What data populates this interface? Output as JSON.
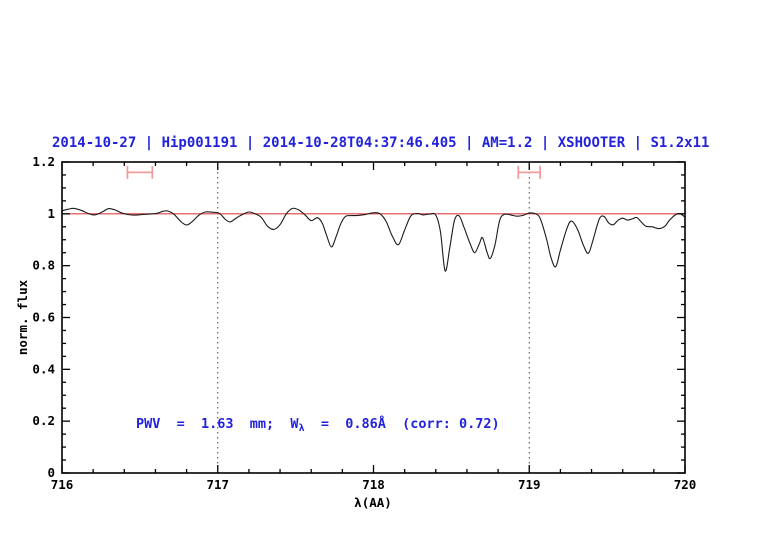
{
  "title": {
    "text": "2014-10-27 | Hip001191 | 2014-10-28T04:37:46.405 | AM=1.2 | XSHOOTER | S1.2x11",
    "color": "#2222dd"
  },
  "annotation": {
    "prefix": "PWV  =  1.63  mm;  W",
    "subscript": "λ",
    "suffix": "  =  0.86Å  (corr: 0.72)",
    "color": "#2222dd"
  },
  "chart_data": {
    "type": "line",
    "title": "2014-10-27 | Hip001191 | 2014-10-28T04:37:46.405 | AM=1.2 | XSHOOTER | S1.2x11",
    "xlabel": "λ(AA)",
    "ylabel": "norm. flux",
    "xlim": [
      716,
      720
    ],
    "ylim": [
      0,
      1.2
    ],
    "grid": false,
    "x_major_ticks": [
      716,
      717,
      718,
      719,
      720
    ],
    "x_tick_labels": [
      "716",
      "717",
      "718",
      "719",
      "720"
    ],
    "x_minor_step": 0.2,
    "y_major_ticks": [
      0,
      0.2,
      0.4,
      0.6,
      0.8,
      1,
      1.2
    ],
    "y_tick_labels": [
      "0",
      "0.2",
      "0.4",
      "0.6",
      "0.8",
      "1",
      "1.2"
    ],
    "y_minor_step": 0.05,
    "vlines": [
      {
        "x": 717,
        "style": "dotted",
        "color": "#444444"
      },
      {
        "x": 719,
        "style": "dotted",
        "color": "#444444"
      }
    ],
    "range_markers": [
      {
        "x_center": 716.5,
        "half_width": 0.08,
        "y": 1.16,
        "cap_half_height": 0.025,
        "color": "#f29b9b"
      },
      {
        "x_center": 719.0,
        "half_width": 0.07,
        "y": 1.16,
        "cap_half_height": 0.025,
        "color": "#f29b9b"
      }
    ],
    "series": [
      {
        "name": "continuum",
        "color": "#e04040",
        "width": 1.2,
        "smooth": false,
        "points": [
          [
            716.0,
            1.0
          ],
          [
            720.0,
            1.0
          ]
        ]
      },
      {
        "name": "spectrum",
        "color": "#1b1b1b",
        "width": 1.1,
        "smooth": true,
        "points": [
          [
            716.0,
            1.012
          ],
          [
            716.04,
            1.018
          ],
          [
            716.08,
            1.021
          ],
          [
            716.13,
            1.012
          ],
          [
            716.17,
            1.001
          ],
          [
            716.21,
            0.996
          ],
          [
            716.26,
            1.008
          ],
          [
            716.3,
            1.02
          ],
          [
            716.34,
            1.015
          ],
          [
            716.38,
            1.004
          ],
          [
            716.42,
            0.998
          ],
          [
            716.46,
            0.995
          ],
          [
            716.51,
            0.997
          ],
          [
            716.56,
            0.999
          ],
          [
            716.61,
            1.002
          ],
          [
            716.65,
            1.01
          ],
          [
            716.68,
            1.011
          ],
          [
            716.72,
            0.998
          ],
          [
            716.76,
            0.972
          ],
          [
            716.8,
            0.957
          ],
          [
            716.84,
            0.972
          ],
          [
            716.88,
            0.995
          ],
          [
            716.92,
            1.007
          ],
          [
            716.97,
            1.006
          ],
          [
            717.01,
            1.002
          ],
          [
            717.05,
            0.978
          ],
          [
            717.08,
            0.969
          ],
          [
            717.12,
            0.984
          ],
          [
            717.16,
            0.998
          ],
          [
            717.2,
            1.007
          ],
          [
            717.24,
            1.0
          ],
          [
            717.28,
            0.986
          ],
          [
            717.32,
            0.952
          ],
          [
            717.36,
            0.94
          ],
          [
            717.4,
            0.958
          ],
          [
            717.44,
            1.0
          ],
          [
            717.48,
            1.021
          ],
          [
            717.52,
            1.015
          ],
          [
            717.56,
            0.996
          ],
          [
            717.6,
            0.974
          ],
          [
            717.64,
            0.985
          ],
          [
            717.67,
            0.965
          ],
          [
            717.7,
            0.915
          ],
          [
            717.73,
            0.872
          ],
          [
            717.76,
            0.912
          ],
          [
            717.79,
            0.962
          ],
          [
            717.82,
            0.99
          ],
          [
            717.86,
            0.993
          ],
          [
            717.9,
            0.994
          ],
          [
            717.95,
            0.998
          ],
          [
            718.0,
            1.004
          ],
          [
            718.04,
            1.001
          ],
          [
            718.08,
            0.972
          ],
          [
            718.12,
            0.915
          ],
          [
            718.16,
            0.881
          ],
          [
            718.2,
            0.938
          ],
          [
            718.24,
            0.992
          ],
          [
            718.28,
            1.001
          ],
          [
            718.32,
            0.996
          ],
          [
            718.36,
            0.999
          ],
          [
            718.4,
            0.995
          ],
          [
            718.43,
            0.93
          ],
          [
            718.46,
            0.78
          ],
          [
            718.49,
            0.87
          ],
          [
            718.52,
            0.975
          ],
          [
            718.55,
            0.992
          ],
          [
            718.58,
            0.95
          ],
          [
            718.62,
            0.885
          ],
          [
            718.65,
            0.85
          ],
          [
            718.68,
            0.885
          ],
          [
            718.7,
            0.908
          ],
          [
            718.73,
            0.85
          ],
          [
            718.75,
            0.828
          ],
          [
            718.78,
            0.88
          ],
          [
            718.81,
            0.975
          ],
          [
            718.84,
            0.998
          ],
          [
            718.88,
            0.996
          ],
          [
            718.92,
            0.991
          ],
          [
            718.96,
            0.994
          ],
          [
            719.0,
            1.003
          ],
          [
            719.04,
            1.0
          ],
          [
            719.07,
            0.982
          ],
          [
            719.11,
            0.905
          ],
          [
            719.14,
            0.83
          ],
          [
            719.17,
            0.796
          ],
          [
            719.2,
            0.86
          ],
          [
            719.24,
            0.94
          ],
          [
            719.27,
            0.972
          ],
          [
            719.31,
            0.94
          ],
          [
            719.35,
            0.875
          ],
          [
            719.38,
            0.848
          ],
          [
            719.41,
            0.9
          ],
          [
            719.45,
            0.98
          ],
          [
            719.48,
            0.99
          ],
          [
            719.51,
            0.965
          ],
          [
            719.54,
            0.958
          ],
          [
            719.57,
            0.975
          ],
          [
            719.6,
            0.983
          ],
          [
            719.63,
            0.976
          ],
          [
            719.66,
            0.98
          ],
          [
            719.69,
            0.986
          ],
          [
            719.72,
            0.968
          ],
          [
            719.75,
            0.952
          ],
          [
            719.79,
            0.95
          ],
          [
            719.83,
            0.943
          ],
          [
            719.87,
            0.952
          ],
          [
            719.9,
            0.975
          ],
          [
            719.94,
            0.997
          ],
          [
            719.97,
            1.0
          ],
          [
            720.0,
            0.987
          ]
        ]
      }
    ]
  }
}
